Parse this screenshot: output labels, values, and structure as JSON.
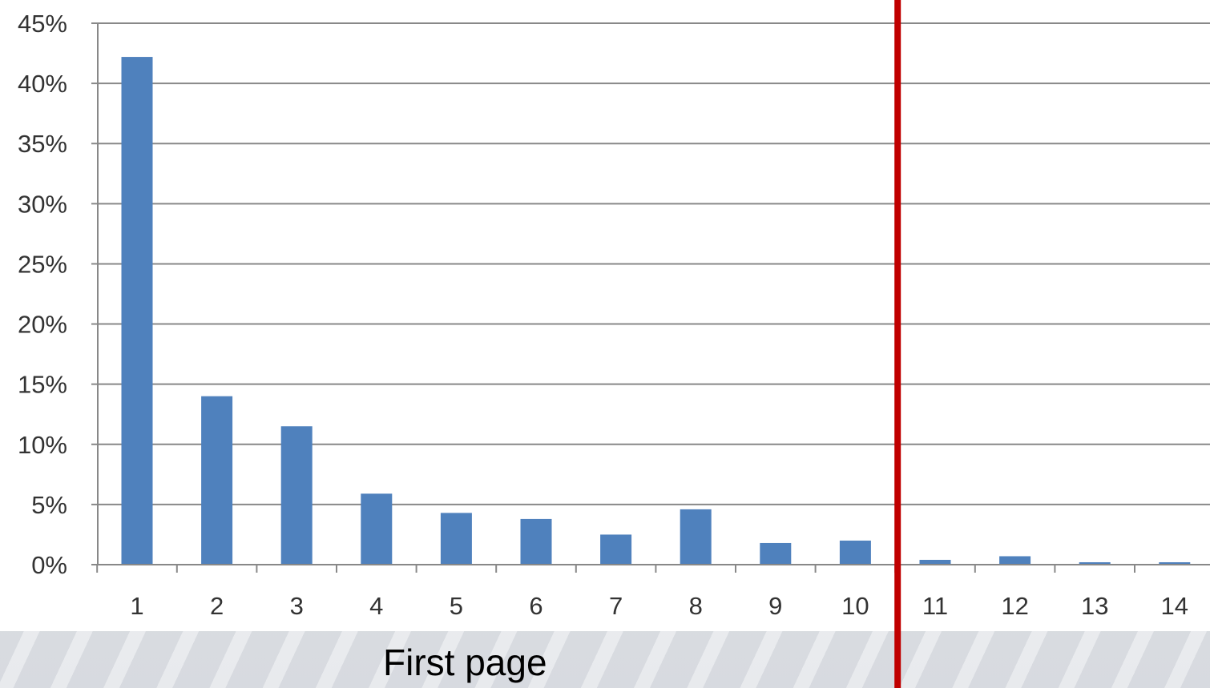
{
  "caption": "First page",
  "chart_data": {
    "type": "bar",
    "categories": [
      "1",
      "2",
      "3",
      "4",
      "5",
      "6",
      "7",
      "8",
      "9",
      "10",
      "11",
      "12",
      "13",
      "14"
    ],
    "series": [
      {
        "values": [
          42.2,
          14.0,
          11.5,
          5.9,
          4.3,
          3.8,
          2.5,
          4.6,
          1.8,
          2.0,
          0.4,
          0.7,
          0.2,
          0.2
        ]
      }
    ],
    "y_tick_labels": [
      "0%",
      "5%",
      "10%",
      "15%",
      "20%",
      "25%",
      "30%",
      "35%",
      "40%",
      "45%"
    ],
    "ylim": [
      0,
      45
    ],
    "y_unit": "%",
    "grid": true,
    "legend": "none",
    "divider_between_categories": [
      "10",
      "11"
    ],
    "colors": {
      "bar": "#4f81bd",
      "divider": "#c00000",
      "grid": "#888888"
    }
  }
}
